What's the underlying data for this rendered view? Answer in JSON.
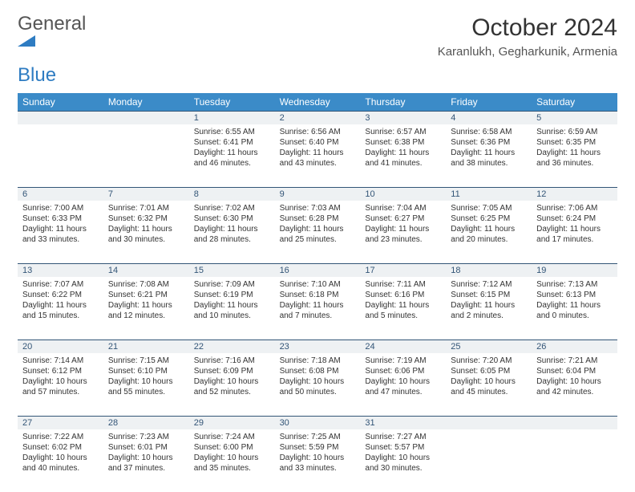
{
  "logo": {
    "text_gray": "General",
    "text_blue": "Blue"
  },
  "title": "October 2024",
  "subtitle": "Karanlukh, Gegharkunik, Armenia",
  "colors": {
    "header_bg": "#3b8bc8",
    "header_text": "#ffffff",
    "daynum_bg": "#eef1f3",
    "daynum_text": "#335577",
    "rule": "#335577",
    "logo_blue": "#2e7cc2",
    "logo_gray": "#555555"
  },
  "day_labels": [
    "Sunday",
    "Monday",
    "Tuesday",
    "Wednesday",
    "Thursday",
    "Friday",
    "Saturday"
  ],
  "weeks": [
    [
      {
        "n": "",
        "sr": "",
        "ss": "",
        "dl": ""
      },
      {
        "n": "",
        "sr": "",
        "ss": "",
        "dl": ""
      },
      {
        "n": "1",
        "sr": "Sunrise: 6:55 AM",
        "ss": "Sunset: 6:41 PM",
        "dl": "Daylight: 11 hours and 46 minutes."
      },
      {
        "n": "2",
        "sr": "Sunrise: 6:56 AM",
        "ss": "Sunset: 6:40 PM",
        "dl": "Daylight: 11 hours and 43 minutes."
      },
      {
        "n": "3",
        "sr": "Sunrise: 6:57 AM",
        "ss": "Sunset: 6:38 PM",
        "dl": "Daylight: 11 hours and 41 minutes."
      },
      {
        "n": "4",
        "sr": "Sunrise: 6:58 AM",
        "ss": "Sunset: 6:36 PM",
        "dl": "Daylight: 11 hours and 38 minutes."
      },
      {
        "n": "5",
        "sr": "Sunrise: 6:59 AM",
        "ss": "Sunset: 6:35 PM",
        "dl": "Daylight: 11 hours and 36 minutes."
      }
    ],
    [
      {
        "n": "6",
        "sr": "Sunrise: 7:00 AM",
        "ss": "Sunset: 6:33 PM",
        "dl": "Daylight: 11 hours and 33 minutes."
      },
      {
        "n": "7",
        "sr": "Sunrise: 7:01 AM",
        "ss": "Sunset: 6:32 PM",
        "dl": "Daylight: 11 hours and 30 minutes."
      },
      {
        "n": "8",
        "sr": "Sunrise: 7:02 AM",
        "ss": "Sunset: 6:30 PM",
        "dl": "Daylight: 11 hours and 28 minutes."
      },
      {
        "n": "9",
        "sr": "Sunrise: 7:03 AM",
        "ss": "Sunset: 6:28 PM",
        "dl": "Daylight: 11 hours and 25 minutes."
      },
      {
        "n": "10",
        "sr": "Sunrise: 7:04 AM",
        "ss": "Sunset: 6:27 PM",
        "dl": "Daylight: 11 hours and 23 minutes."
      },
      {
        "n": "11",
        "sr": "Sunrise: 7:05 AM",
        "ss": "Sunset: 6:25 PM",
        "dl": "Daylight: 11 hours and 20 minutes."
      },
      {
        "n": "12",
        "sr": "Sunrise: 7:06 AM",
        "ss": "Sunset: 6:24 PM",
        "dl": "Daylight: 11 hours and 17 minutes."
      }
    ],
    [
      {
        "n": "13",
        "sr": "Sunrise: 7:07 AM",
        "ss": "Sunset: 6:22 PM",
        "dl": "Daylight: 11 hours and 15 minutes."
      },
      {
        "n": "14",
        "sr": "Sunrise: 7:08 AM",
        "ss": "Sunset: 6:21 PM",
        "dl": "Daylight: 11 hours and 12 minutes."
      },
      {
        "n": "15",
        "sr": "Sunrise: 7:09 AM",
        "ss": "Sunset: 6:19 PM",
        "dl": "Daylight: 11 hours and 10 minutes."
      },
      {
        "n": "16",
        "sr": "Sunrise: 7:10 AM",
        "ss": "Sunset: 6:18 PM",
        "dl": "Daylight: 11 hours and 7 minutes."
      },
      {
        "n": "17",
        "sr": "Sunrise: 7:11 AM",
        "ss": "Sunset: 6:16 PM",
        "dl": "Daylight: 11 hours and 5 minutes."
      },
      {
        "n": "18",
        "sr": "Sunrise: 7:12 AM",
        "ss": "Sunset: 6:15 PM",
        "dl": "Daylight: 11 hours and 2 minutes."
      },
      {
        "n": "19",
        "sr": "Sunrise: 7:13 AM",
        "ss": "Sunset: 6:13 PM",
        "dl": "Daylight: 11 hours and 0 minutes."
      }
    ],
    [
      {
        "n": "20",
        "sr": "Sunrise: 7:14 AM",
        "ss": "Sunset: 6:12 PM",
        "dl": "Daylight: 10 hours and 57 minutes."
      },
      {
        "n": "21",
        "sr": "Sunrise: 7:15 AM",
        "ss": "Sunset: 6:10 PM",
        "dl": "Daylight: 10 hours and 55 minutes."
      },
      {
        "n": "22",
        "sr": "Sunrise: 7:16 AM",
        "ss": "Sunset: 6:09 PM",
        "dl": "Daylight: 10 hours and 52 minutes."
      },
      {
        "n": "23",
        "sr": "Sunrise: 7:18 AM",
        "ss": "Sunset: 6:08 PM",
        "dl": "Daylight: 10 hours and 50 minutes."
      },
      {
        "n": "24",
        "sr": "Sunrise: 7:19 AM",
        "ss": "Sunset: 6:06 PM",
        "dl": "Daylight: 10 hours and 47 minutes."
      },
      {
        "n": "25",
        "sr": "Sunrise: 7:20 AM",
        "ss": "Sunset: 6:05 PM",
        "dl": "Daylight: 10 hours and 45 minutes."
      },
      {
        "n": "26",
        "sr": "Sunrise: 7:21 AM",
        "ss": "Sunset: 6:04 PM",
        "dl": "Daylight: 10 hours and 42 minutes."
      }
    ],
    [
      {
        "n": "27",
        "sr": "Sunrise: 7:22 AM",
        "ss": "Sunset: 6:02 PM",
        "dl": "Daylight: 10 hours and 40 minutes."
      },
      {
        "n": "28",
        "sr": "Sunrise: 7:23 AM",
        "ss": "Sunset: 6:01 PM",
        "dl": "Daylight: 10 hours and 37 minutes."
      },
      {
        "n": "29",
        "sr": "Sunrise: 7:24 AM",
        "ss": "Sunset: 6:00 PM",
        "dl": "Daylight: 10 hours and 35 minutes."
      },
      {
        "n": "30",
        "sr": "Sunrise: 7:25 AM",
        "ss": "Sunset: 5:59 PM",
        "dl": "Daylight: 10 hours and 33 minutes."
      },
      {
        "n": "31",
        "sr": "Sunrise: 7:27 AM",
        "ss": "Sunset: 5:57 PM",
        "dl": "Daylight: 10 hours and 30 minutes."
      },
      {
        "n": "",
        "sr": "",
        "ss": "",
        "dl": ""
      },
      {
        "n": "",
        "sr": "",
        "ss": "",
        "dl": ""
      }
    ]
  ]
}
